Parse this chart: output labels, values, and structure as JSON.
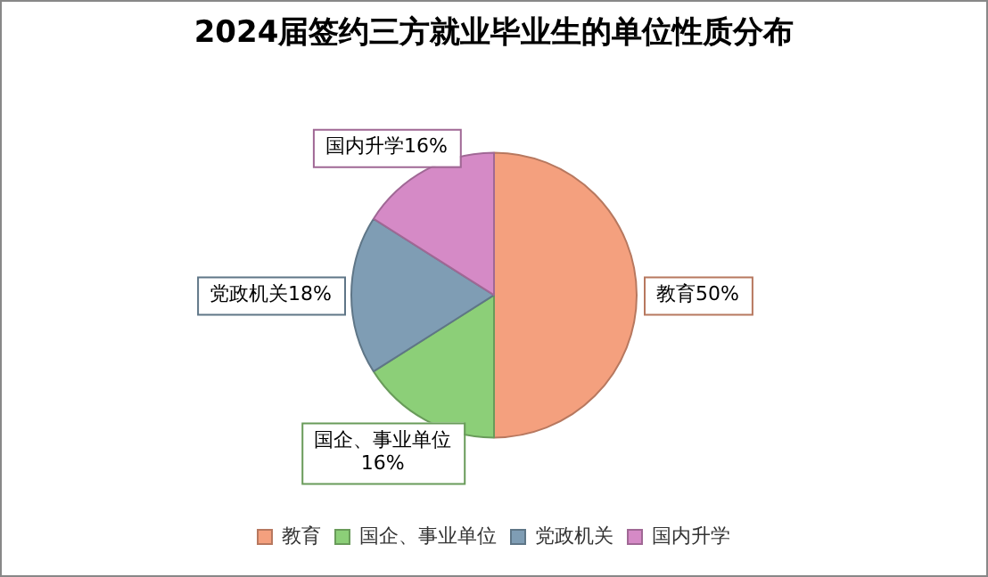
{
  "chart_data": {
    "type": "pie",
    "title": "2024届签约三方就业毕业生的单位性质分布",
    "categories": [
      "教育",
      "国企、事业单位",
      "党政机关",
      "国内升学"
    ],
    "values": [
      50,
      16,
      18,
      16
    ],
    "value_labels": [
      "50%",
      "16%",
      "18%",
      "16%"
    ],
    "colors": [
      "#f4a07e",
      "#8ccf78",
      "#7f9db4",
      "#d58ac6"
    ],
    "legend": "bottom"
  }
}
